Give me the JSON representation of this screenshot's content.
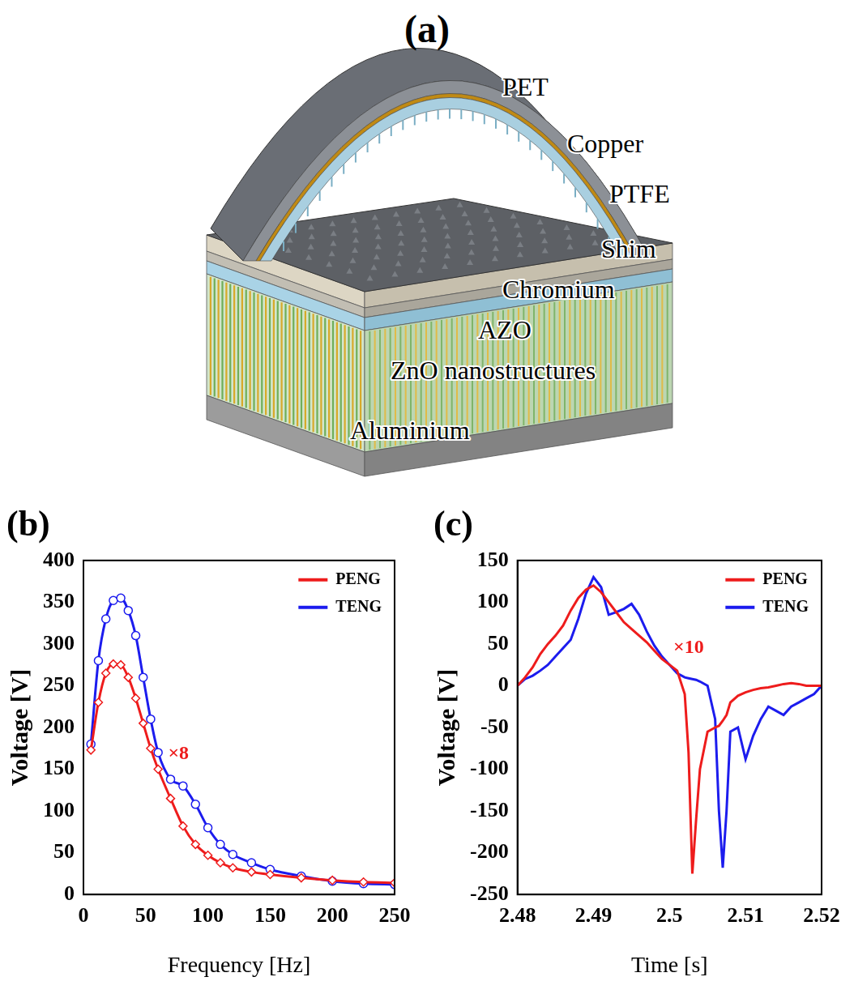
{
  "diagram": {
    "panel": "(a)",
    "layers": [
      "PET",
      "Copper",
      "PTFE",
      "Shim",
      "Chromium",
      "AZO",
      "ZnO nanostructures",
      "Aluminium"
    ]
  },
  "chart_data": [
    {
      "type": "line",
      "title": "(b)",
      "x_label": "Frequency [Hz]",
      "y_label": "Voltage [V]",
      "x": [
        6,
        12,
        18,
        24,
        30,
        36,
        42,
        48,
        54,
        60,
        70,
        80,
        90,
        100,
        110,
        120,
        135,
        150,
        175,
        200,
        225,
        250
      ],
      "series": [
        {
          "name": "PENG",
          "color": "#ee1c1c",
          "marker": "diamond",
          "values": [
            173,
            230,
            265,
            276,
            275,
            260,
            235,
            205,
            175,
            150,
            115,
            82,
            60,
            47,
            38,
            32,
            27,
            24,
            20,
            17,
            15,
            14
          ]
        },
        {
          "name": "TENG",
          "color": "#1c1cee",
          "marker": "circle",
          "values": [
            180,
            280,
            330,
            352,
            355,
            340,
            310,
            260,
            210,
            170,
            138,
            130,
            108,
            80,
            60,
            48,
            38,
            30,
            22,
            16,
            13,
            12
          ]
        }
      ],
      "xlim": [
        0,
        250
      ],
      "xticks": [
        0,
        50,
        100,
        150,
        200,
        250
      ],
      "ylim": [
        0,
        400
      ],
      "yticks": [
        0,
        50,
        100,
        150,
        200,
        250,
        300,
        350,
        400
      ],
      "grid": false,
      "legend": "upper right",
      "annotations": [
        {
          "text": "×8",
          "x": 68,
          "y": 168,
          "color": "#ee1c1c"
        }
      ]
    },
    {
      "type": "line",
      "title": "(c)",
      "x_label": "Time [s]",
      "y_label": "Voltage [V]",
      "x": [
        2.48,
        2.481,
        2.482,
        2.483,
        2.484,
        2.485,
        2.486,
        2.487,
        2.488,
        2.489,
        2.49,
        2.491,
        2.492,
        2.493,
        2.494,
        2.495,
        2.496,
        2.497,
        2.498,
        2.499,
        2.5,
        2.501,
        2.502,
        2.5025,
        2.503,
        2.5035,
        2.504,
        2.505,
        2.506,
        2.5065,
        2.507,
        2.5075,
        2.508,
        2.509,
        2.51,
        2.511,
        2.512,
        2.513,
        2.514,
        2.515,
        2.516,
        2.517,
        2.518,
        2.519,
        2.52
      ],
      "series": [
        {
          "name": "PENG",
          "color": "#ee1c1c",
          "marker": "none",
          "values": [
            0,
            10,
            22,
            38,
            50,
            60,
            72,
            90,
            105,
            115,
            120,
            112,
            100,
            88,
            76,
            68,
            60,
            52,
            42,
            32,
            25,
            18,
            -10,
            -80,
            -225,
            -160,
            -100,
            -55,
            -50,
            -48,
            -42,
            -35,
            -20,
            -12,
            -8,
            -5,
            -3,
            -2,
            0,
            2,
            3,
            2,
            0,
            0,
            0
          ]
        },
        {
          "name": "TENG",
          "color": "#1c1cee",
          "marker": "none",
          "values": [
            0,
            8,
            12,
            18,
            25,
            35,
            45,
            55,
            80,
            110,
            130,
            118,
            85,
            88,
            92,
            98,
            85,
            65,
            48,
            35,
            25,
            15,
            10,
            9,
            8,
            7,
            5,
            0,
            -40,
            -150,
            -218,
            -150,
            -55,
            -50,
            -88,
            -60,
            -40,
            -25,
            -30,
            -35,
            -25,
            -20,
            -15,
            -10,
            0
          ]
        }
      ],
      "xlim": [
        2.48,
        2.52
      ],
      "xticks": [
        2.48,
        2.49,
        2.5,
        2.51,
        2.52
      ],
      "ylim": [
        -250,
        150
      ],
      "yticks": [
        -250,
        -200,
        -150,
        -100,
        -50,
        0,
        50,
        100,
        150
      ],
      "grid": false,
      "legend": "upper right",
      "annotations": [
        {
          "text": "×10",
          "x": 2.5005,
          "y": 45,
          "color": "#ee1c1c"
        }
      ]
    }
  ]
}
